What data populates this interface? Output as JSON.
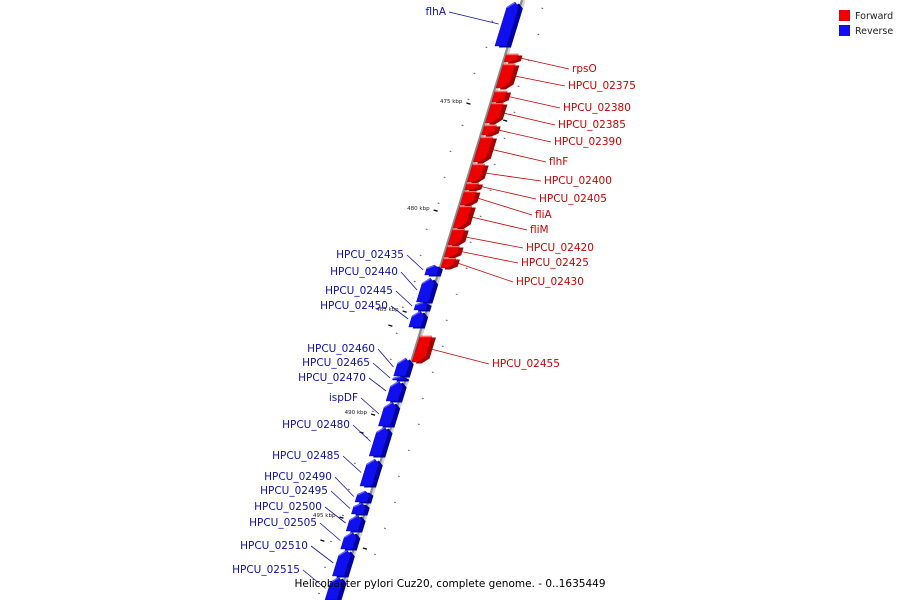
{
  "title": "Helicobacter pylori Cuz20, complete genome. - 0..1635449",
  "colors": {
    "forward": "#ee0000",
    "forward_light": "#ff6a6a",
    "forward_dark": "#a30000",
    "reverse": "#1010ee",
    "reverse_light": "#6a6aff",
    "reverse_dark": "#0000a0",
    "backbone": "#8a8a8a"
  },
  "legend": {
    "forward_label": "Forward",
    "reverse_label": "Reverse"
  },
  "ticks": [
    {
      "label": "475 kbp"
    },
    {
      "label": "480 kbp"
    },
    {
      "label": "485 kbp"
    },
    {
      "label": "490 kbp"
    },
    {
      "label": "495 kbp"
    }
  ],
  "genes": [
    {
      "name": "flhA",
      "strand": "reverse"
    },
    {
      "name": "rpsO",
      "strand": "forward"
    },
    {
      "name": "HPCU_02375",
      "strand": "forward"
    },
    {
      "name": "HPCU_02380",
      "strand": "forward"
    },
    {
      "name": "HPCU_02385",
      "strand": "forward"
    },
    {
      "name": "HPCU_02390",
      "strand": "forward"
    },
    {
      "name": "flhF",
      "strand": "forward"
    },
    {
      "name": "HPCU_02400",
      "strand": "forward"
    },
    {
      "name": "HPCU_02405",
      "strand": "forward"
    },
    {
      "name": "fliA",
      "strand": "forward"
    },
    {
      "name": "fliM",
      "strand": "forward"
    },
    {
      "name": "HPCU_02420",
      "strand": "forward"
    },
    {
      "name": "HPCU_02425",
      "strand": "forward"
    },
    {
      "name": "HPCU_02430",
      "strand": "forward"
    },
    {
      "name": "HPCU_02435",
      "strand": "reverse"
    },
    {
      "name": "HPCU_02440",
      "strand": "reverse"
    },
    {
      "name": "HPCU_02445",
      "strand": "reverse"
    },
    {
      "name": "HPCU_02450",
      "strand": "reverse"
    },
    {
      "name": "HPCU_02455",
      "strand": "forward"
    },
    {
      "name": "HPCU_02460",
      "strand": "reverse"
    },
    {
      "name": "HPCU_02465",
      "strand": "reverse"
    },
    {
      "name": "HPCU_02470",
      "strand": "reverse"
    },
    {
      "name": "ispDF",
      "strand": "reverse"
    },
    {
      "name": "HPCU_02480",
      "strand": "reverse"
    },
    {
      "name": "HPCU_02485",
      "strand": "reverse"
    },
    {
      "name": "HPCU_02490",
      "strand": "reverse"
    },
    {
      "name": "HPCU_02495",
      "strand": "reverse"
    },
    {
      "name": "HPCU_02500",
      "strand": "reverse"
    },
    {
      "name": "HPCU_02505",
      "strand": "reverse"
    },
    {
      "name": "HPCU_02510",
      "strand": "reverse"
    },
    {
      "name": "HPCU_02515",
      "strand": "reverse"
    }
  ]
}
